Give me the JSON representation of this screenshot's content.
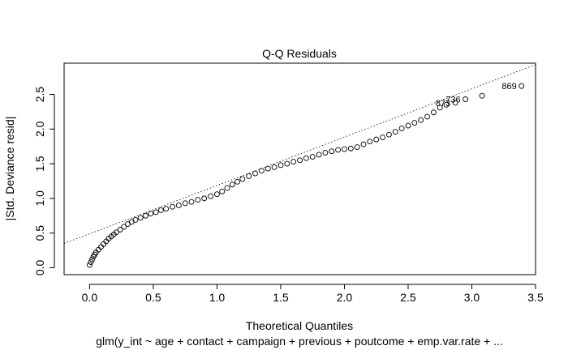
{
  "chart_data": {
    "type": "scatter",
    "title": "Q-Q Residuals",
    "xlabel": "Theoretical Quantiles",
    "ylabel": "|Std. Deviance resid|",
    "subtitle": "glm(y_int ~ age + contact + campaign + previous + poutcome + emp.var.rate + ...",
    "xlim": [
      -0.2,
      3.5
    ],
    "ylim": [
      -0.1,
      2.95
    ],
    "xticks": [
      "0.0",
      "0.5",
      "1.0",
      "1.5",
      "2.0",
      "2.5",
      "3.0",
      "3.5"
    ],
    "yticks": [
      "0.0",
      "0.5",
      "1.0",
      "1.5",
      "2.0",
      "2.5"
    ],
    "reference_line": {
      "x": [
        -0.2,
        3.5
      ],
      "y": [
        0.35,
        2.93
      ]
    },
    "points": [
      {
        "x": 0.0,
        "y": 0.04
      },
      {
        "x": 0.01,
        "y": 0.08
      },
      {
        "x": 0.02,
        "y": 0.12
      },
      {
        "x": 0.03,
        "y": 0.16
      },
      {
        "x": 0.04,
        "y": 0.19
      },
      {
        "x": 0.05,
        "y": 0.22
      },
      {
        "x": 0.07,
        "y": 0.26
      },
      {
        "x": 0.09,
        "y": 0.3
      },
      {
        "x": 0.11,
        "y": 0.34
      },
      {
        "x": 0.13,
        "y": 0.38
      },
      {
        "x": 0.15,
        "y": 0.42
      },
      {
        "x": 0.17,
        "y": 0.45
      },
      {
        "x": 0.19,
        "y": 0.48
      },
      {
        "x": 0.21,
        "y": 0.51
      },
      {
        "x": 0.24,
        "y": 0.55
      },
      {
        "x": 0.27,
        "y": 0.59
      },
      {
        "x": 0.3,
        "y": 0.63
      },
      {
        "x": 0.33,
        "y": 0.66
      },
      {
        "x": 0.36,
        "y": 0.69
      },
      {
        "x": 0.4,
        "y": 0.72
      },
      {
        "x": 0.44,
        "y": 0.75
      },
      {
        "x": 0.48,
        "y": 0.78
      },
      {
        "x": 0.52,
        "y": 0.8
      },
      {
        "x": 0.56,
        "y": 0.83
      },
      {
        "x": 0.6,
        "y": 0.85
      },
      {
        "x": 0.65,
        "y": 0.88
      },
      {
        "x": 0.7,
        "y": 0.9
      },
      {
        "x": 0.75,
        "y": 0.93
      },
      {
        "x": 0.8,
        "y": 0.95
      },
      {
        "x": 0.85,
        "y": 0.98
      },
      {
        "x": 0.9,
        "y": 1.0
      },
      {
        "x": 0.95,
        "y": 1.03
      },
      {
        "x": 1.0,
        "y": 1.06
      },
      {
        "x": 1.04,
        "y": 1.1
      },
      {
        "x": 1.08,
        "y": 1.15
      },
      {
        "x": 1.12,
        "y": 1.2
      },
      {
        "x": 1.16,
        "y": 1.24
      },
      {
        "x": 1.2,
        "y": 1.28
      },
      {
        "x": 1.25,
        "y": 1.32
      },
      {
        "x": 1.3,
        "y": 1.36
      },
      {
        "x": 1.35,
        "y": 1.4
      },
      {
        "x": 1.4,
        "y": 1.43
      },
      {
        "x": 1.45,
        "y": 1.45
      },
      {
        "x": 1.5,
        "y": 1.48
      },
      {
        "x": 1.55,
        "y": 1.5
      },
      {
        "x": 1.6,
        "y": 1.53
      },
      {
        "x": 1.65,
        "y": 1.55
      },
      {
        "x": 1.7,
        "y": 1.58
      },
      {
        "x": 1.75,
        "y": 1.6
      },
      {
        "x": 1.8,
        "y": 1.63
      },
      {
        "x": 1.85,
        "y": 1.66
      },
      {
        "x": 1.9,
        "y": 1.68
      },
      {
        "x": 1.95,
        "y": 1.7
      },
      {
        "x": 2.0,
        "y": 1.71
      },
      {
        "x": 2.05,
        "y": 1.72
      },
      {
        "x": 2.1,
        "y": 1.74
      },
      {
        "x": 2.15,
        "y": 1.78
      },
      {
        "x": 2.2,
        "y": 1.82
      },
      {
        "x": 2.25,
        "y": 1.85
      },
      {
        "x": 2.3,
        "y": 1.88
      },
      {
        "x": 2.35,
        "y": 1.92
      },
      {
        "x": 2.4,
        "y": 1.96
      },
      {
        "x": 2.45,
        "y": 2.01
      },
      {
        "x": 2.5,
        "y": 2.05
      },
      {
        "x": 2.55,
        "y": 2.09
      },
      {
        "x": 2.6,
        "y": 2.13
      },
      {
        "x": 2.65,
        "y": 2.18
      },
      {
        "x": 2.7,
        "y": 2.24
      },
      {
        "x": 2.75,
        "y": 2.31
      },
      {
        "x": 2.8,
        "y": 2.35
      },
      {
        "x": 2.87,
        "y": 2.38
      },
      {
        "x": 2.95,
        "y": 2.43
      },
      {
        "x": 3.08,
        "y": 2.48
      },
      {
        "x": 3.39,
        "y": 2.62
      }
    ],
    "point_labels": [
      {
        "text": "873",
        "x": 2.87,
        "y": 2.38
      },
      {
        "text": "736",
        "x": 2.95,
        "y": 2.43
      },
      {
        "text": "869",
        "x": 3.39,
        "y": 2.62
      }
    ]
  }
}
